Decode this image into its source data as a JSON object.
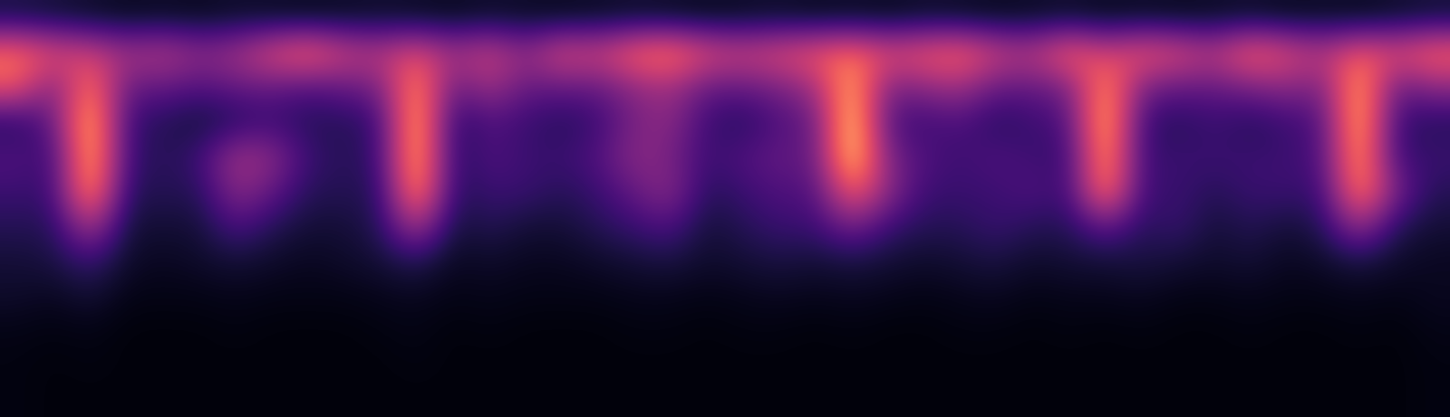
{
  "chart_data": {
    "type": "spectrogram",
    "tick_labels": false,
    "cell_range": [
      0,
      1
    ],
    "cells": [
      [
        0.12,
        0.1,
        0.08,
        0.06,
        0.07,
        0.06,
        0.08,
        0.07,
        0.06,
        0.07,
        0.08,
        0.07,
        0.06,
        0.08,
        0.07,
        0.06,
        0.07,
        0.08,
        0.07,
        0.06,
        0.07,
        0.08,
        0.06,
        0.07,
        0.06,
        0.08,
        0.07,
        0.06,
        0.07,
        0.08,
        0.06,
        0.07,
        0.06,
        0.07,
        0.08,
        0.06,
        0.07,
        0.06,
        0.08,
        0.1
      ],
      [
        0.7,
        0.6,
        0.55,
        0.45,
        0.5,
        0.4,
        0.45,
        0.6,
        0.7,
        0.55,
        0.5,
        0.6,
        0.45,
        0.55,
        0.4,
        0.6,
        0.55,
        0.7,
        0.75,
        0.6,
        0.55,
        0.6,
        0.65,
        0.7,
        0.6,
        0.65,
        0.7,
        0.55,
        0.5,
        0.7,
        0.55,
        0.65,
        0.6,
        0.5,
        0.7,
        0.6,
        0.5,
        0.65,
        0.6,
        0.7
      ],
      [
        0.65,
        0.35,
        0.75,
        0.3,
        0.3,
        0.25,
        0.3,
        0.3,
        0.25,
        0.3,
        0.35,
        0.8,
        0.3,
        0.45,
        0.3,
        0.3,
        0.3,
        0.4,
        0.45,
        0.3,
        0.3,
        0.35,
        0.45,
        0.85,
        0.35,
        0.4,
        0.45,
        0.3,
        0.3,
        0.35,
        0.8,
        0.35,
        0.3,
        0.3,
        0.35,
        0.4,
        0.35,
        0.85,
        0.3,
        0.4
      ],
      [
        0.15,
        0.3,
        0.9,
        0.2,
        0.15,
        0.1,
        0.15,
        0.2,
        0.15,
        0.15,
        0.2,
        0.9,
        0.15,
        0.25,
        0.2,
        0.15,
        0.2,
        0.35,
        0.4,
        0.2,
        0.15,
        0.25,
        0.3,
        0.95,
        0.25,
        0.2,
        0.25,
        0.15,
        0.2,
        0.25,
        0.9,
        0.2,
        0.15,
        0.2,
        0.15,
        0.2,
        0.25,
        0.9,
        0.2,
        0.15
      ],
      [
        0.25,
        0.2,
        0.9,
        0.2,
        0.15,
        0.2,
        0.45,
        0.4,
        0.2,
        0.15,
        0.2,
        0.9,
        0.15,
        0.25,
        0.2,
        0.2,
        0.25,
        0.4,
        0.35,
        0.2,
        0.25,
        0.3,
        0.3,
        0.95,
        0.35,
        0.25,
        0.2,
        0.25,
        0.2,
        0.2,
        0.85,
        0.2,
        0.2,
        0.2,
        0.2,
        0.2,
        0.25,
        0.85,
        0.2,
        0.2
      ],
      [
        0.2,
        0.2,
        0.85,
        0.15,
        0.15,
        0.15,
        0.4,
        0.3,
        0.15,
        0.15,
        0.15,
        0.85,
        0.15,
        0.2,
        0.2,
        0.15,
        0.2,
        0.3,
        0.4,
        0.15,
        0.2,
        0.25,
        0.25,
        0.7,
        0.4,
        0.2,
        0.2,
        0.2,
        0.25,
        0.2,
        0.8,
        0.2,
        0.2,
        0.15,
        0.2,
        0.2,
        0.2,
        0.8,
        0.35,
        0.15
      ],
      [
        0.15,
        0.15,
        0.5,
        0.1,
        0.1,
        0.1,
        0.25,
        0.15,
        0.1,
        0.1,
        0.15,
        0.5,
        0.1,
        0.15,
        0.1,
        0.1,
        0.15,
        0.2,
        0.25,
        0.1,
        0.15,
        0.2,
        0.2,
        0.35,
        0.2,
        0.15,
        0.15,
        0.2,
        0.15,
        0.15,
        0.3,
        0.15,
        0.2,
        0.1,
        0.15,
        0.1,
        0.15,
        0.45,
        0.15,
        0.1
      ],
      [
        0.1,
        0.12,
        0.2,
        0.08,
        0.06,
        0.08,
        0.1,
        0.08,
        0.06,
        0.08,
        0.1,
        0.15,
        0.06,
        0.08,
        0.06,
        0.06,
        0.08,
        0.1,
        0.12,
        0.08,
        0.1,
        0.12,
        0.1,
        0.12,
        0.1,
        0.08,
        0.1,
        0.12,
        0.08,
        0.1,
        0.1,
        0.12,
        0.1,
        0.08,
        0.1,
        0.06,
        0.08,
        0.12,
        0.08,
        0.06
      ],
      [
        0.08,
        0.06,
        0.1,
        0.04,
        0.04,
        0.04,
        0.05,
        0.04,
        0.04,
        0.04,
        0.05,
        0.06,
        0.04,
        0.05,
        0.04,
        0.04,
        0.04,
        0.05,
        0.05,
        0.04,
        0.05,
        0.06,
        0.05,
        0.06,
        0.05,
        0.04,
        0.05,
        0.06,
        0.04,
        0.05,
        0.05,
        0.06,
        0.04,
        0.04,
        0.05,
        0.04,
        0.04,
        0.05,
        0.04,
        0.06
      ],
      [
        0.04,
        0.03,
        0.04,
        0.02,
        0.02,
        0.02,
        0.03,
        0.02,
        0.02,
        0.02,
        0.03,
        0.04,
        0.02,
        0.03,
        0.02,
        0.02,
        0.02,
        0.03,
        0.03,
        0.02,
        0.03,
        0.03,
        0.02,
        0.03,
        0.02,
        0.02,
        0.03,
        0.03,
        0.02,
        0.03,
        0.02,
        0.03,
        0.02,
        0.02,
        0.03,
        0.02,
        0.02,
        0.03,
        0.02,
        0.04
      ],
      [
        0.03,
        0.02,
        0.03,
        0.02,
        0.02,
        0.02,
        0.02,
        0.02,
        0.02,
        0.02,
        0.02,
        0.03,
        0.02,
        0.02,
        0.02,
        0.02,
        0.02,
        0.02,
        0.02,
        0.02,
        0.02,
        0.02,
        0.02,
        0.02,
        0.02,
        0.02,
        0.02,
        0.02,
        0.02,
        0.02,
        0.02,
        0.02,
        0.02,
        0.02,
        0.02,
        0.02,
        0.02,
        0.02,
        0.02,
        0.03
      ],
      [
        0.03,
        0.02,
        0.02,
        0.02,
        0.02,
        0.02,
        0.02,
        0.02,
        0.02,
        0.02,
        0.02,
        0.02,
        0.02,
        0.02,
        0.02,
        0.02,
        0.02,
        0.02,
        0.02,
        0.02,
        0.02,
        0.02,
        0.02,
        0.02,
        0.02,
        0.02,
        0.02,
        0.02,
        0.02,
        0.02,
        0.02,
        0.02,
        0.02,
        0.02,
        0.02,
        0.02,
        0.02,
        0.02,
        0.02,
        0.03
      ]
    ]
  }
}
